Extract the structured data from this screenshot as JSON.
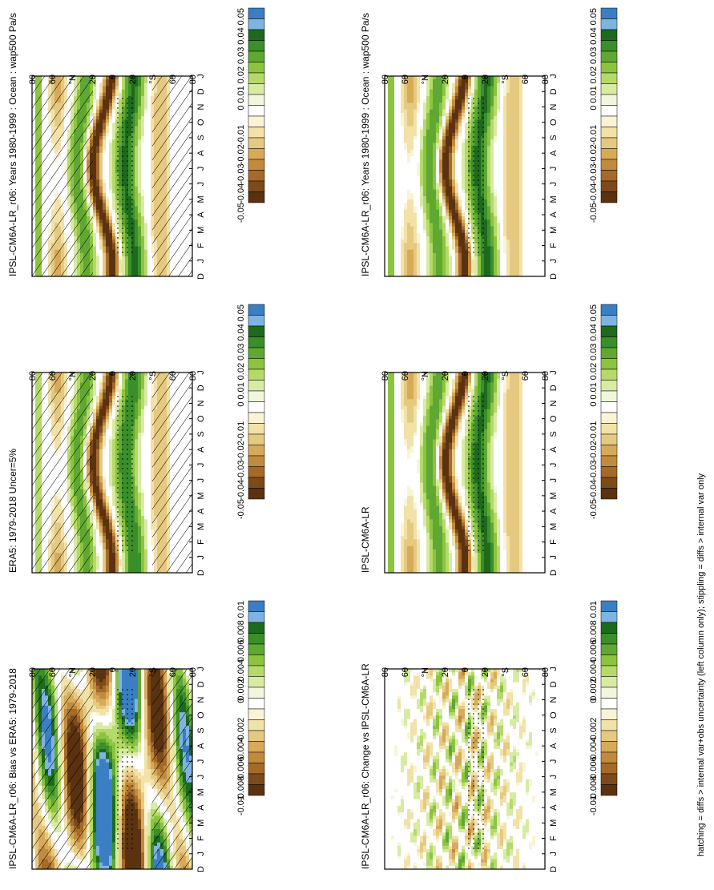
{
  "footnote": "hatching = diffs > internal var+obs uncertainty (left column only); stippling = diffs > internal var only",
  "months": [
    "D",
    "J",
    "F",
    "M",
    "A",
    "M",
    "J",
    "J",
    "A",
    "S",
    "O",
    "N",
    "D",
    "J"
  ],
  "lat_ticks": [
    "80",
    "60",
    "°N",
    "20",
    "0",
    "20",
    "°S",
    "60",
    "80"
  ],
  "chart_data": [
    {
      "type": "heatmap",
      "title": "IPSL-CM6A-LR_r06: Years 1980-1999 : Ocean : wap500 Pa/s",
      "colorbar": [
        "0.05",
        "0.04",
        "0.03",
        "0.02",
        "0.01",
        "0",
        "-0.01",
        "-0.02",
        "-0.03",
        "-0.04",
        "-0.05"
      ],
      "vmax": 0.05,
      "hatched": true,
      "stippled": true
    },
    {
      "type": "heatmap",
      "title": "IPSL-CM6A-LR_r06: Years 1980-1999 : Ocean : wap500 Pa/s",
      "colorbar": [
        "0.05",
        "0.04",
        "0.03",
        "0.02",
        "0.01",
        "0",
        "-0.01",
        "-0.02",
        "-0.03",
        "-0.04",
        "-0.05"
      ],
      "vmax": 0.05,
      "hatched": false,
      "stippled": true
    },
    {
      "type": "heatmap",
      "title": "ERA5: 1979-2018 Uncer=5%",
      "colorbar": [
        "0.05",
        "0.04",
        "0.03",
        "0.02",
        "0.01",
        "0",
        "-0.01",
        "-0.02",
        "-0.03",
        "-0.04",
        "-0.05"
      ],
      "vmax": 0.05,
      "hatched": true,
      "stippled": true
    },
    {
      "type": "heatmap",
      "title": "IPSL-CM6A-LR",
      "colorbar": [
        "0.05",
        "0.04",
        "0.03",
        "0.02",
        "0.01",
        "0",
        "-0.01",
        "-0.02",
        "-0.03",
        "-0.04",
        "-0.05"
      ],
      "vmax": 0.05,
      "hatched": false,
      "stippled": true
    },
    {
      "type": "heatmap",
      "title": "IPSL-CM6A-LR_r06: Bias vs ERA5: 1979-2018",
      "colorbar": [
        "0.01",
        "0.008",
        "0.006",
        "0.004",
        "0.002",
        "0",
        "-0.002",
        "-0.004",
        "-0.006",
        "-0.008",
        "-0.01"
      ],
      "vmax": 0.01,
      "hatched": true,
      "stippled": true,
      "bias": true
    },
    {
      "type": "heatmap",
      "title": "IPSL-CM6A-LR_r06: Change vs IPSL-CM6A-LR",
      "colorbar": [
        "0.01",
        "0.008",
        "0.006",
        "0.004",
        "0.002",
        "0",
        "-0.002",
        "-0.004",
        "-0.006",
        "-0.008",
        "-0.01"
      ],
      "vmax": 0.01,
      "hatched": false,
      "stippled": true,
      "noise": true
    }
  ],
  "palette": [
    "#3a7fc4",
    "#7fb3e2",
    "#1d6a1d",
    "#3a8f2a",
    "#5fa832",
    "#8cc43f",
    "#b5d96a",
    "#d8eba4",
    "#f1f7dc",
    "#ffffff",
    "#fbf3d6",
    "#f2e2a8",
    "#e6c980",
    "#d7aa5a",
    "#c28a3c",
    "#a56a28",
    "#7d4b1a",
    "#5a3210"
  ]
}
